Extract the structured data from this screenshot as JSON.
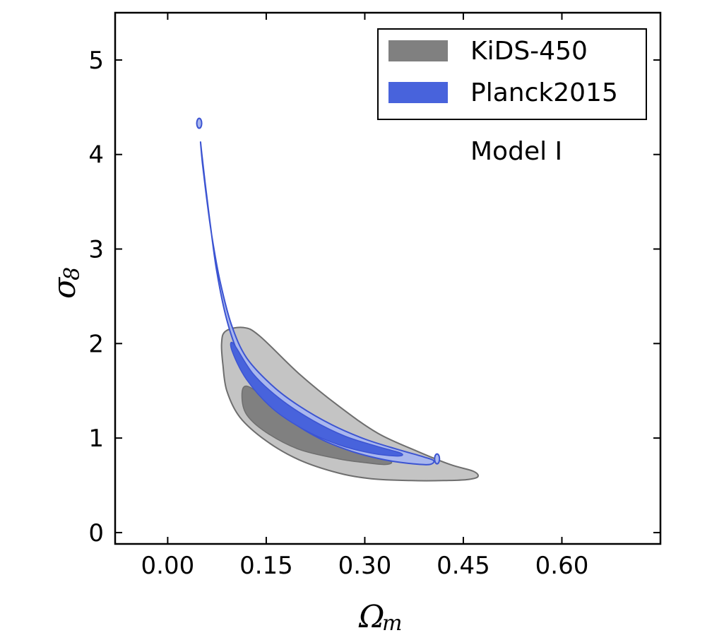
{
  "chart_data": {
    "type": "contour",
    "xlabel": "Ω",
    "xlabel_subscript": "m",
    "ylabel": "σ",
    "ylabel_subscript": "8",
    "xlim": [
      -0.08,
      0.75
    ],
    "ylim": [
      -0.12,
      5.5
    ],
    "xticks": [
      0.0,
      0.15,
      0.3,
      0.45,
      0.6
    ],
    "xtick_labels": [
      "0.00",
      "0.15",
      "0.30",
      "0.45",
      "0.60"
    ],
    "yticks": [
      0,
      1,
      2,
      3,
      4,
      5
    ],
    "ytick_labels": [
      "0",
      "1",
      "2",
      "3",
      "4",
      "5"
    ],
    "grid": false,
    "legend_position": "top-right",
    "annotation": "Model I",
    "series": [
      {
        "name": "KiDS-450",
        "color": "#808080",
        "outer_color": "#c4c4c4",
        "edge_color": "#6e6e6e",
        "contours": {
          "outer_95": [
            [
              0.088,
              2.13
            ],
            [
              0.115,
              2.17
            ],
            [
              0.14,
              2.08
            ],
            [
              0.2,
              1.68
            ],
            [
              0.26,
              1.34
            ],
            [
              0.32,
              1.05
            ],
            [
              0.38,
              0.86
            ],
            [
              0.43,
              0.72
            ],
            [
              0.465,
              0.65
            ],
            [
              0.472,
              0.59
            ],
            [
              0.455,
              0.56
            ],
            [
              0.42,
              0.55
            ],
            [
              0.37,
              0.55
            ],
            [
              0.31,
              0.57
            ],
            [
              0.26,
              0.63
            ],
            [
              0.2,
              0.77
            ],
            [
              0.15,
              0.97
            ],
            [
              0.11,
              1.22
            ],
            [
              0.09,
              1.5
            ],
            [
              0.084,
              1.78
            ],
            [
              0.082,
              2.0
            ]
          ],
          "inner_68": [
            [
              0.12,
              1.55
            ],
            [
              0.15,
              1.42
            ],
            [
              0.2,
              1.17
            ],
            [
              0.26,
              0.97
            ],
            [
              0.31,
              0.83
            ],
            [
              0.34,
              0.75
            ],
            [
              0.33,
              0.72
            ],
            [
              0.3,
              0.74
            ],
            [
              0.26,
              0.78
            ],
            [
              0.2,
              0.88
            ],
            [
              0.15,
              1.06
            ],
            [
              0.12,
              1.25
            ],
            [
              0.113,
              1.45
            ]
          ]
        }
      },
      {
        "name": "Planck2015",
        "color": "#4863dc",
        "outer_color": "#a9b7ee",
        "edge_color": "#3c54d2",
        "contours": {
          "outer_95": [
            [
              0.05,
              4.13
            ],
            [
              0.053,
              3.9
            ],
            [
              0.06,
              3.5
            ],
            [
              0.068,
              3.1
            ],
            [
              0.08,
              2.65
            ],
            [
              0.097,
              2.2
            ],
            [
              0.12,
              1.85
            ],
            [
              0.16,
              1.55
            ],
            [
              0.2,
              1.34
            ],
            [
              0.25,
              1.14
            ],
            [
              0.3,
              0.99
            ],
            [
              0.35,
              0.88
            ],
            [
              0.39,
              0.8
            ],
            [
              0.405,
              0.76
            ],
            [
              0.398,
              0.72
            ],
            [
              0.37,
              0.73
            ],
            [
              0.33,
              0.77
            ],
            [
              0.28,
              0.86
            ],
            [
              0.23,
              1.0
            ],
            [
              0.18,
              1.22
            ],
            [
              0.14,
              1.5
            ],
            [
              0.11,
              1.85
            ],
            [
              0.09,
              2.25
            ],
            [
              0.075,
              2.75
            ],
            [
              0.065,
              3.25
            ],
            [
              0.057,
              3.7
            ],
            [
              0.052,
              4.0
            ]
          ],
          "inner_68": [
            [
              0.1,
              2.0
            ],
            [
              0.13,
              1.68
            ],
            [
              0.17,
              1.42
            ],
            [
              0.22,
              1.19
            ],
            [
              0.27,
              1.02
            ],
            [
              0.32,
              0.91
            ],
            [
              0.355,
              0.84
            ],
            [
              0.35,
              0.81
            ],
            [
              0.31,
              0.84
            ],
            [
              0.26,
              0.93
            ],
            [
              0.21,
              1.08
            ],
            [
              0.16,
              1.31
            ],
            [
              0.12,
              1.62
            ],
            [
              0.098,
              1.92
            ]
          ],
          "islands": [
            [
              0.048,
              4.33
            ],
            [
              0.41,
              0.78
            ]
          ]
        }
      }
    ]
  }
}
